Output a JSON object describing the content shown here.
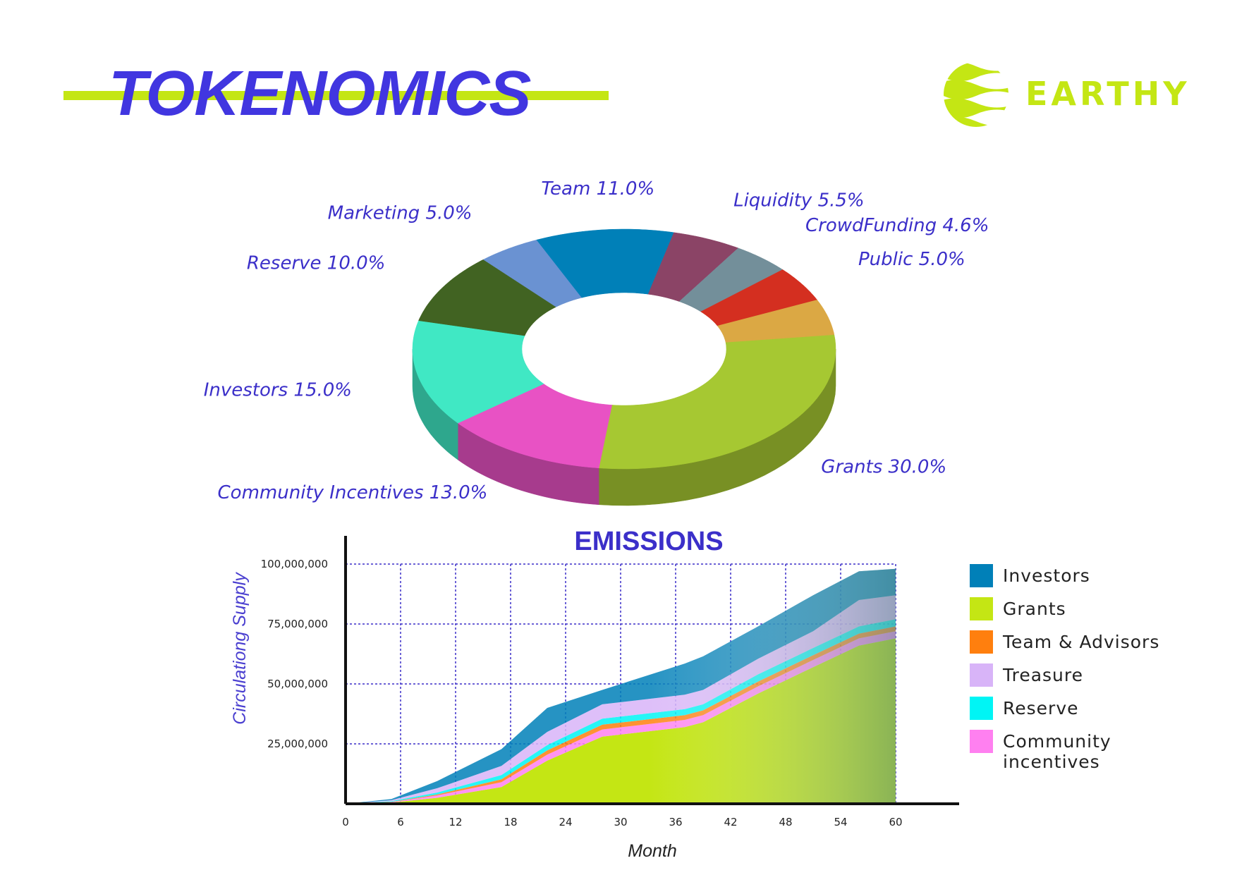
{
  "header": {
    "title": "TOKENOMICS",
    "brand": "EARTHY"
  },
  "colors": {
    "accent": "#c4e614",
    "title": "#4136e0",
    "label": "#3b2fc9"
  },
  "chart_data": [
    {
      "type": "pie",
      "style": "3d-donut",
      "slices": [
        {
          "name": "Grants",
          "value": 30.0,
          "label": "Grants 30.0%",
          "color": "#a6c832"
        },
        {
          "name": "Community Incentives",
          "value": 13.0,
          "label": "Community Incentives 13.0%",
          "color": "#e852c4"
        },
        {
          "name": "Investors",
          "value": 15.0,
          "label": "Investors 15.0%",
          "color": "#40e8c4"
        },
        {
          "name": "Reserve",
          "value": 10.0,
          "label": "Reserve 10.0%",
          "color": "#416322"
        },
        {
          "name": "Marketing",
          "value": 5.0,
          "label": "Marketing 5.0%",
          "color": "#6a92d2"
        },
        {
          "name": "Team",
          "value": 11.0,
          "label": "Team 11.0%",
          "color": "#0080b8"
        },
        {
          "name": "Liquidity",
          "value": 5.5,
          "label": "Liquidity 5.5%",
          "color": "#8b4466"
        },
        {
          "name": "CrowdFunding",
          "value": 4.6,
          "label": "CrowdFunding 4.6%",
          "color": "#738f9a"
        },
        {
          "name": "Public",
          "value": 5.0,
          "label": "Public 5.0%",
          "color": "#d42f20"
        },
        {
          "name": "",
          "value": 5.0,
          "label": "",
          "color": "#dba844"
        }
      ]
    },
    {
      "type": "area",
      "stacked": true,
      "title": "EMISSIONS",
      "xlabel": "Month",
      "ylabel": "Circulationg Supply",
      "xticks": [
        0,
        6,
        12,
        18,
        24,
        30,
        36,
        42,
        48,
        54,
        60
      ],
      "yticks": [
        25000000,
        50000000,
        75000000,
        100000000
      ],
      "ytick_labels": [
        "25,000,000",
        "50,000,000",
        "75,000,000",
        "100,000,000"
      ],
      "xlim": [
        0,
        60
      ],
      "ylim": [
        0,
        100000000
      ],
      "grid": true,
      "legend": "right",
      "x": [
        0,
        5,
        10,
        17,
        22,
        28,
        37,
        39,
        45,
        51,
        56,
        60
      ],
      "series": [
        {
          "name": "Grants",
          "color": "#c4e614",
          "values": [
            0,
            500000,
            2500000,
            7000000,
            18000000,
            28000000,
            32000000,
            34000000,
            46000000,
            57000000,
            66000000,
            69000000
          ]
        },
        {
          "name": "Community incentives",
          "color": "#ff80f0",
          "values": [
            0,
            200000,
            1000000,
            2000000,
            2500000,
            3000000,
            3000000,
            3000000,
            3000000,
            3000000,
            3000000,
            3000000
          ]
        },
        {
          "name": "Team & Advisors",
          "color": "#ff7f0e",
          "values": [
            0,
            100000,
            400000,
            1200000,
            1800000,
            2000000,
            2000000,
            2000000,
            2000000,
            2000000,
            2000000,
            2000000
          ]
        },
        {
          "name": "Reserve",
          "color": "#00f5f5",
          "values": [
            0,
            300000,
            800000,
            1800000,
            2200000,
            2500000,
            2500000,
            2500000,
            3000000,
            3000000,
            3000000,
            3000000
          ]
        },
        {
          "name": "Treasure",
          "color": "#d8b4f8",
          "values": [
            0,
            400000,
            1800000,
            3800000,
            5500000,
            6000000,
            6000000,
            6000000,
            6500000,
            7000000,
            11000000,
            10000000
          ]
        },
        {
          "name": "Investors",
          "color": "#0080b8",
          "values": [
            0,
            500000,
            3000000,
            7000000,
            10000000,
            6000000,
            13000000,
            14000000,
            13500000,
            15000000,
            12000000,
            11000000
          ]
        }
      ],
      "total": [
        0,
        2000000,
        9500000,
        22800000,
        40000000,
        47500000,
        58500000,
        61500000,
        74000000,
        87000000,
        97000000,
        98000000
      ]
    }
  ]
}
